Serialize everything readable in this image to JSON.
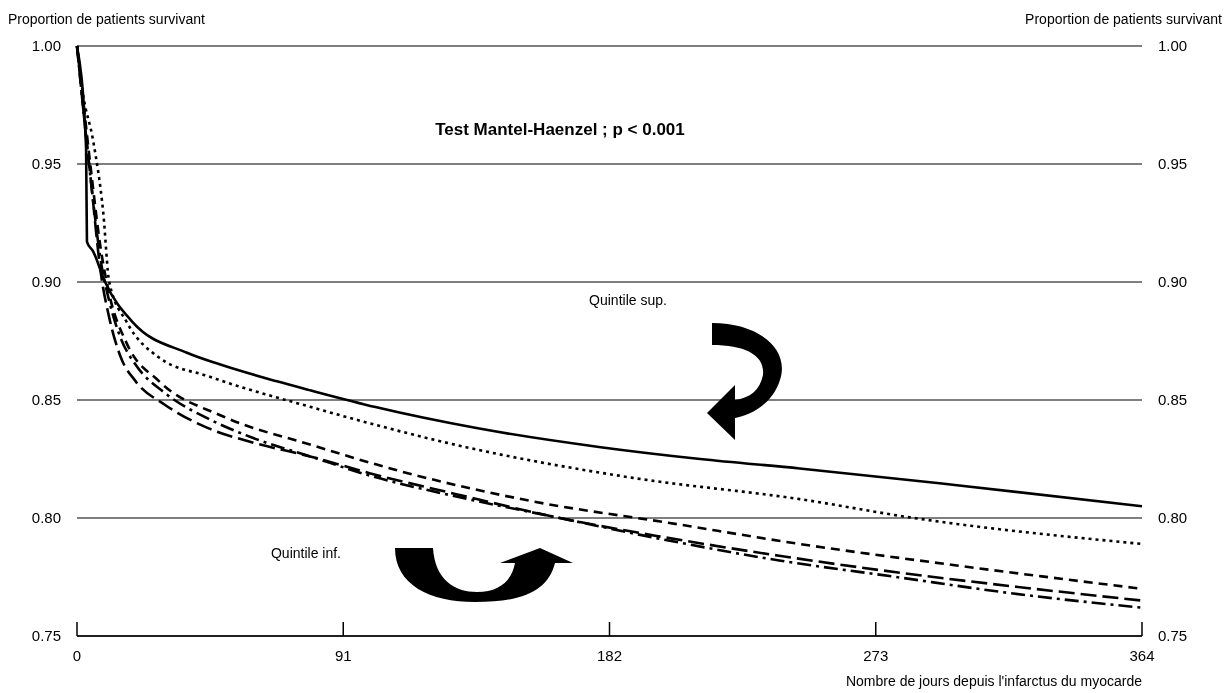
{
  "chart_data": {
    "type": "line",
    "ylabel": "Proportion de patients survivant",
    "y2label": "Proportion de patients survivant",
    "xlabel": "Nombre de jours depuis l'infarctus du myocarde",
    "annotations": [
      "Test Mantel-Haenzel ; p < 0.001",
      "Quintile sup.",
      "Quintile inf."
    ],
    "xlim": [
      0,
      364
    ],
    "xticks": [
      0,
      91,
      182,
      273,
      364
    ],
    "ylim": [
      0.75,
      1
    ],
    "yticks": [
      {
        "value": 0.75,
        "label": "0.75"
      },
      {
        "value": 0.8,
        "label": "0.80"
      },
      {
        "value": 0.85,
        "label": "0.85"
      },
      {
        "value": 0.9,
        "label": "0.90"
      },
      {
        "value": 0.95,
        "label": "0.95"
      },
      {
        "value": 1,
        "label": "1.00"
      }
    ],
    "y2lim": [
      0.75,
      1
    ],
    "y2ticks": [
      {
        "value": 0.75,
        "label": "0.75"
      },
      {
        "value": 0.8,
        "label": "0.80"
      },
      {
        "value": 0.85,
        "label": "0.85"
      },
      {
        "value": 0.9,
        "label": "0.90"
      },
      {
        "value": 0.95,
        "label": "0.95"
      },
      {
        "value": 1,
        "label": "1.00"
      }
    ],
    "grid": "y",
    "marker": "none",
    "series": [
      {
        "color": "#000000",
        "line_style": "solid",
        "x": [
          0,
          3.1,
          3.4,
          5.5,
          9.6,
          19,
          37.6,
          49,
          68,
          80,
          102,
          137,
          179,
          213,
          247,
          300,
          364
        ],
        "values": [
          1,
          0.957,
          0.917,
          0.913,
          0.9,
          0.883,
          0.87,
          0.865,
          0.858,
          0.854,
          0.847,
          0.838,
          0.83,
          0.825,
          0.821,
          0.814,
          0.805
        ]
      },
      {
        "color": "#000000",
        "line_style": "dotted",
        "x": [
          0,
          2,
          5.5,
          9,
          11,
          17,
          28,
          45,
          80,
          133,
          190,
          247,
          286,
          364
        ],
        "values": [
          1,
          0.98,
          0.96,
          0.929,
          0.9,
          0.883,
          0.868,
          0.86,
          0.847,
          0.83,
          0.817,
          0.808,
          0.8,
          0.789
        ]
      },
      {
        "color": "#000000",
        "line_style": "dashed",
        "x": [
          0,
          2,
          5,
          8,
          11,
          17,
          28,
          50,
          80,
          110,
          156,
          202,
          247,
          300,
          364
        ],
        "values": [
          1,
          0.978,
          0.945,
          0.915,
          0.895,
          0.874,
          0.858,
          0.843,
          0.831,
          0.82,
          0.807,
          0.798,
          0.789,
          0.78,
          0.77
        ]
      },
      {
        "color": "#000000",
        "line_style": "longdashed",
        "x": [
          0,
          2,
          5,
          8,
          11,
          15,
          20,
          30,
          45,
          60,
          80,
          100,
          130,
          165,
          200,
          240,
          280,
          320,
          364
        ],
        "values": [
          1,
          0.975,
          0.94,
          0.905,
          0.885,
          0.868,
          0.858,
          0.848,
          0.838,
          0.832,
          0.826,
          0.819,
          0.81,
          0.8,
          0.792,
          0.784,
          0.777,
          0.771,
          0.765
        ]
      },
      {
        "color": "#000000",
        "line_style": "dashdot",
        "x": [
          0,
          2,
          5,
          8,
          11,
          15,
          20,
          30,
          45,
          60,
          80,
          100,
          130,
          165,
          200,
          240,
          280,
          320,
          364
        ],
        "values": [
          1,
          0.975,
          0.94,
          0.91,
          0.892,
          0.876,
          0.865,
          0.853,
          0.842,
          0.834,
          0.826,
          0.818,
          0.809,
          0.8,
          0.791,
          0.782,
          0.775,
          0.768,
          0.762
        ]
      }
    ]
  }
}
